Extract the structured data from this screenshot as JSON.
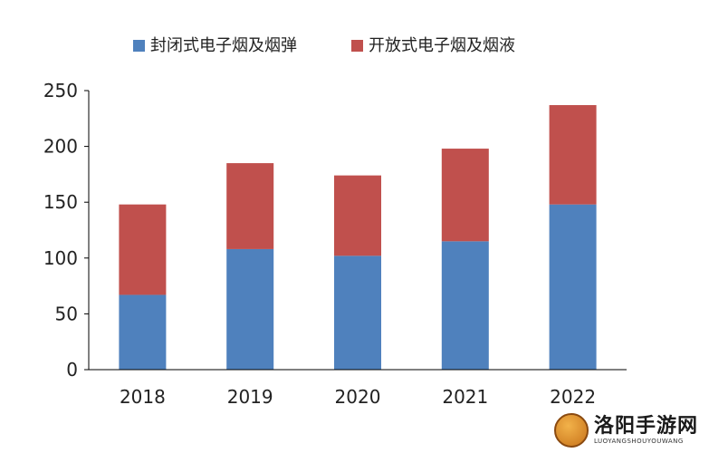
{
  "chart_data": {
    "type": "bar",
    "stacked": true,
    "categories": [
      "2018",
      "2019",
      "2020",
      "2021",
      "2022"
    ],
    "series": [
      {
        "name": "封闭式电子烟及烟弹",
        "color": "#4f81bd",
        "values": [
          67,
          108,
          102,
          115,
          148
        ]
      },
      {
        "name": "开放式电子烟及烟液",
        "color": "#c0504d",
        "values": [
          81,
          77,
          72,
          83,
          89
        ]
      }
    ],
    "ylim": [
      0,
      250
    ],
    "yticks": [
      "0",
      "50",
      "100",
      "150",
      "200",
      "250"
    ],
    "grid": false,
    "legend_position": "top"
  },
  "watermark": {
    "title": "洛阳手游网",
    "subtitle": "LUOYANGSHOUYOUWANG"
  }
}
